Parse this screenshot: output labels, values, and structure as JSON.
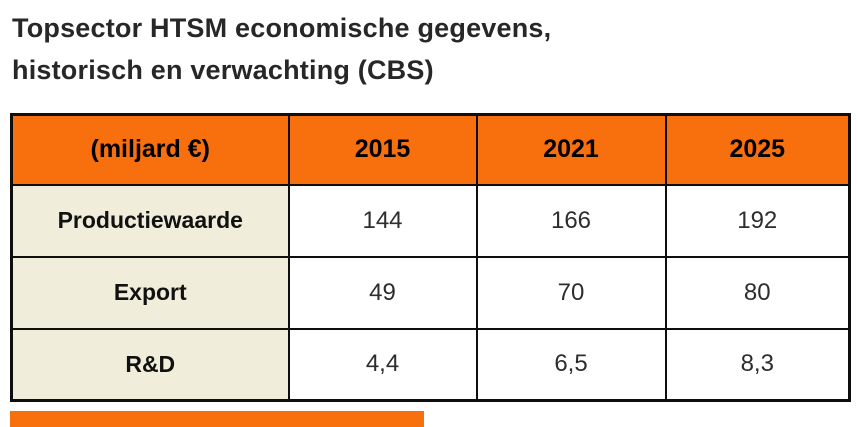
{
  "title": {
    "line1": "Topsector HTSM economische gegevens,",
    "line2": "historisch en verwachting (CBS)"
  },
  "table": {
    "header": [
      "(miljard €)",
      "2015",
      "2021",
      "2025"
    ],
    "rows": [
      {
        "label": "Productiewaarde",
        "values": [
          "144",
          "166",
          "192"
        ]
      },
      {
        "label": "Export",
        "values": [
          "49",
          "70",
          "80"
        ]
      },
      {
        "label": "R&D",
        "values": [
          "4,4",
          "6,5",
          "8,3"
        ]
      }
    ]
  },
  "chart_data": {
    "type": "table",
    "title": "Topsector HTSM economische gegevens, historisch en verwachting (CBS)",
    "unit": "miljard €",
    "categories": [
      "2015",
      "2021",
      "2025"
    ],
    "series": [
      {
        "name": "Productiewaarde",
        "values": [
          144,
          166,
          192
        ]
      },
      {
        "name": "Export",
        "values": [
          49,
          70,
          80
        ]
      },
      {
        "name": "R&D",
        "values": [
          4.4,
          6.5,
          8.3
        ]
      }
    ]
  },
  "colors": {
    "accent": "#f86f0e",
    "label_bg": "#f0eddb",
    "border": "#0e0e0e",
    "title_color": "#272727"
  }
}
